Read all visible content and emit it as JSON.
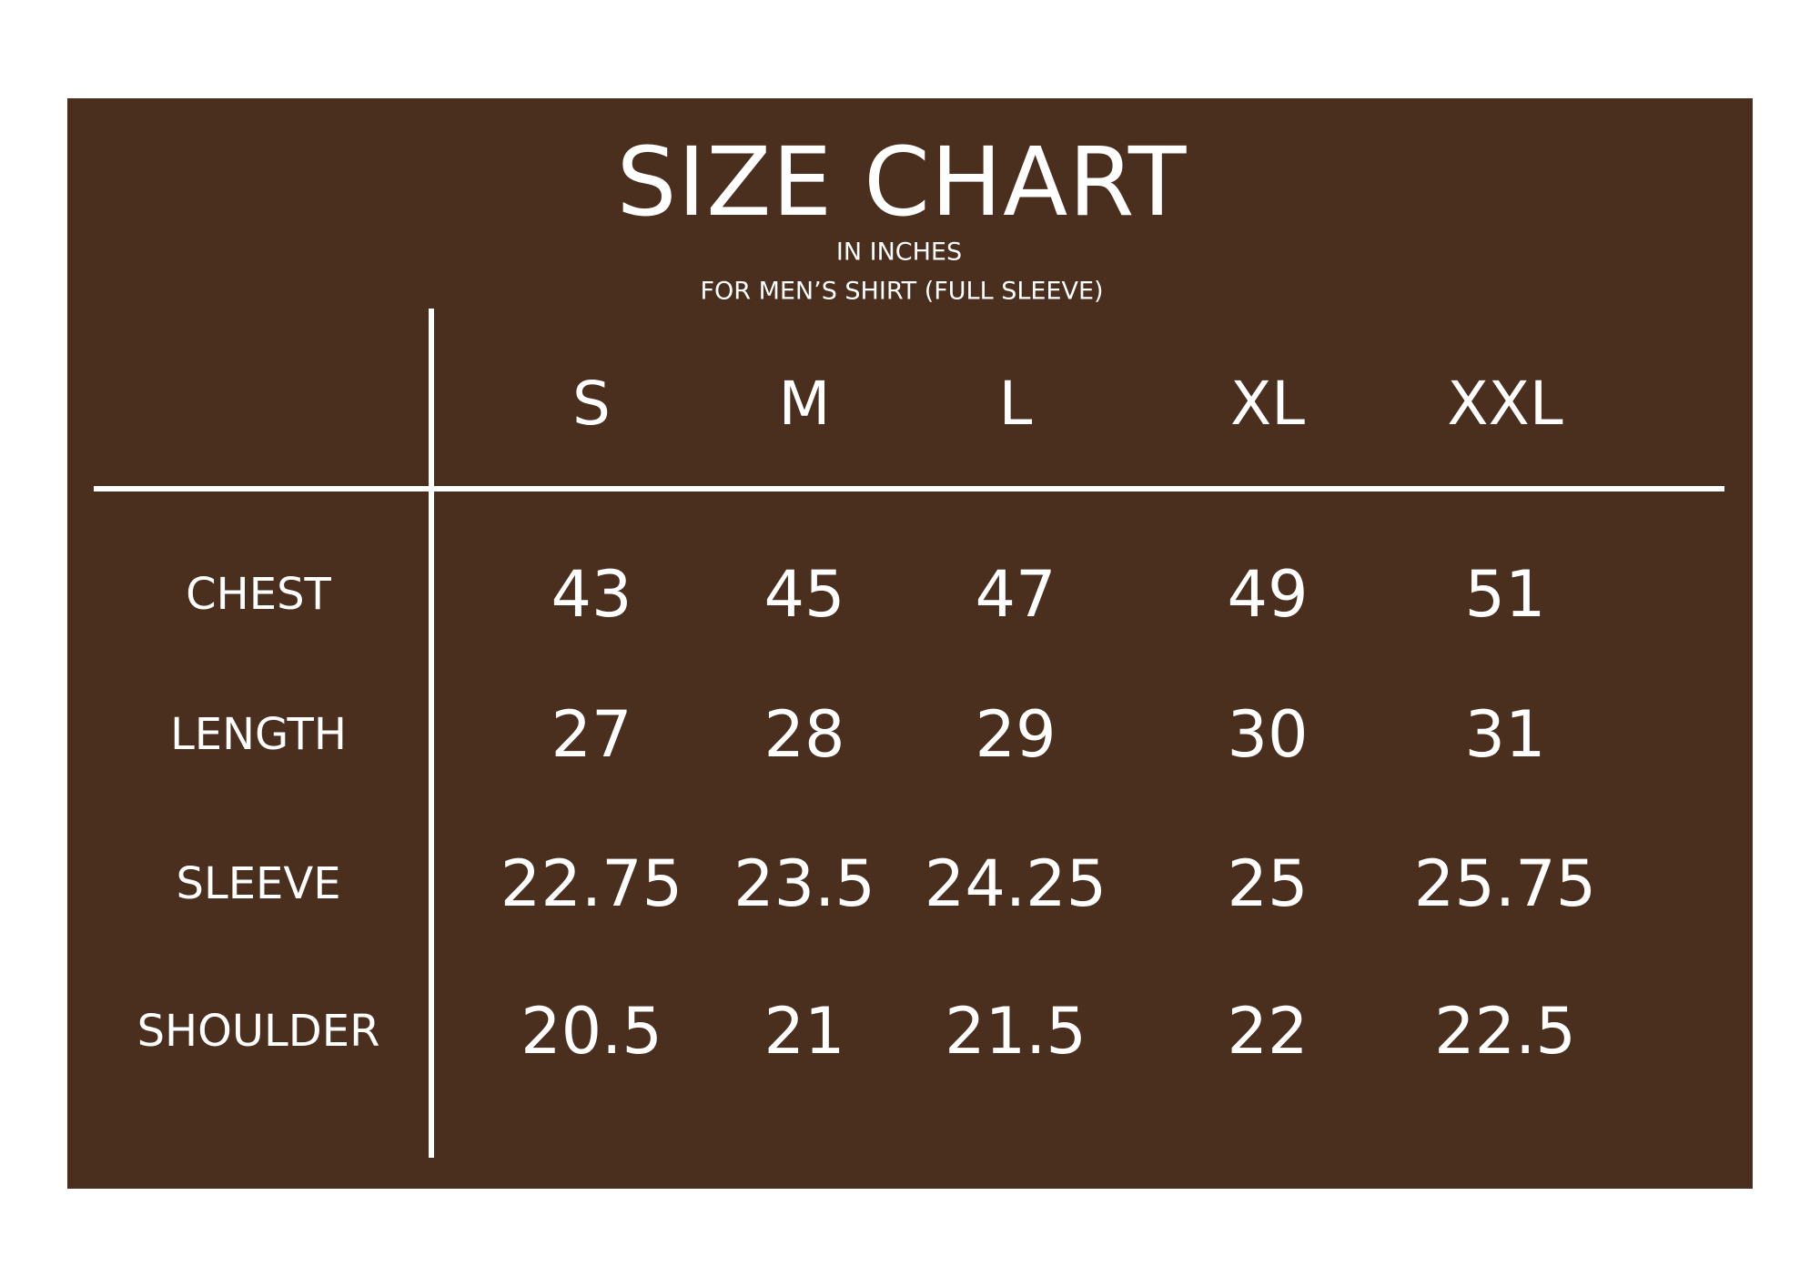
{
  "title": "SIZE CHART",
  "unit_note": "IN INCHES",
  "product_note": "FOR MEN’S SHIRT (FULL SLEEVE)",
  "colors": {
    "background": "#4a2e1e",
    "text": "#ffffff",
    "page": "#ffffff"
  },
  "table": {
    "columns": [
      "S",
      "M",
      "L",
      "XL",
      "XXL"
    ],
    "rows": [
      {
        "label": "CHEST",
        "values": [
          "43",
          "45",
          "47",
          "49",
          "51"
        ]
      },
      {
        "label": "LENGTH",
        "values": [
          "27",
          "28",
          "29",
          "30",
          "31"
        ]
      },
      {
        "label": "SLEEVE",
        "values": [
          "22.75",
          "23.5",
          "24.25",
          "25",
          "25.75"
        ]
      },
      {
        "label": "SHOULDER",
        "values": [
          "20.5",
          "21",
          "21.5",
          "22",
          "22.5"
        ]
      }
    ]
  }
}
